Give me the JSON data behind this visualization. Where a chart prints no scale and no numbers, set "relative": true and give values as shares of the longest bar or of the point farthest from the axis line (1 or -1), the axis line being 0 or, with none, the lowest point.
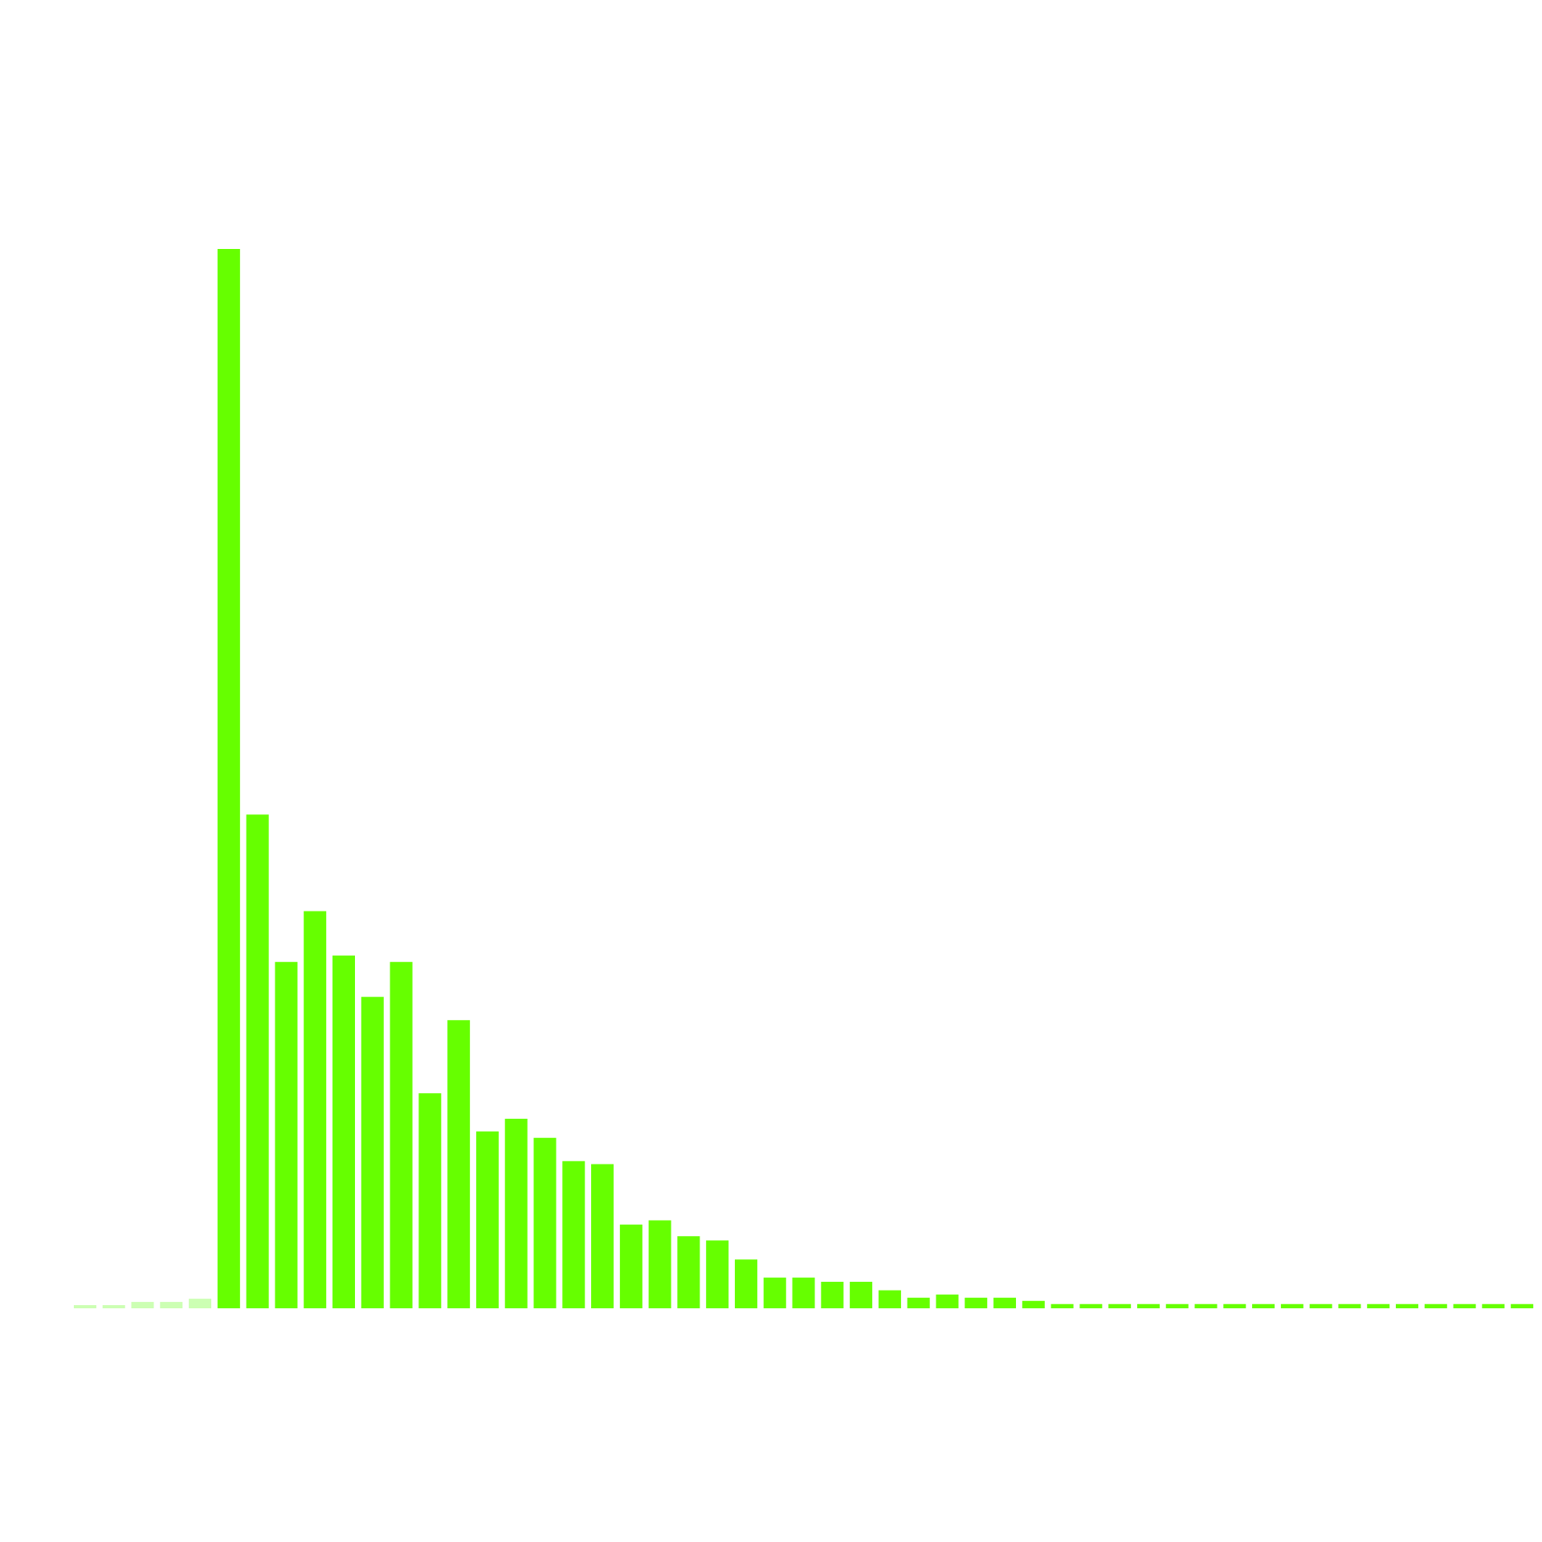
{
  "chart_data": {
    "type": "bar",
    "relative": true,
    "categories": [
      null,
      null,
      null,
      null,
      null,
      null,
      null,
      null,
      null,
      null,
      null,
      null,
      null,
      null,
      null,
      null,
      null,
      null,
      null,
      null,
      null,
      null,
      null,
      null,
      null,
      null,
      null,
      null,
      null,
      null,
      null,
      null,
      null,
      null,
      null,
      null,
      null,
      null,
      null,
      null,
      null,
      null,
      null,
      null,
      null,
      null,
      null,
      null,
      null,
      null,
      null
    ],
    "values": [
      0.003,
      0.003,
      0.006,
      0.006,
      0.009,
      1,
      0.466,
      0.327,
      0.375,
      0.333,
      0.294,
      0.327,
      0.203,
      0.272,
      0.167,
      0.179,
      0.161,
      0.139,
      0.136,
      0.079,
      0.083,
      0.068,
      0.064,
      0.046,
      0.029,
      0.029,
      0.025,
      0.025,
      0.017,
      0.01,
      0.013,
      0.01,
      0.01,
      0.007,
      0.004,
      0.004,
      0.004,
      0.004,
      0.004,
      0.004,
      0.004,
      0.004,
      0.004,
      0.004,
      0.004,
      0.004,
      0.004,
      0.004,
      0.004,
      0.004,
      0.004
    ],
    "colors": [
      "#ccffb3",
      "#ccffb3",
      "#ccffb3",
      "#ccffb3",
      "#ccffb3",
      "#66ff00",
      "#66ff00",
      "#66ff00",
      "#66ff00",
      "#66ff00",
      "#66ff00",
      "#66ff00",
      "#66ff00",
      "#66ff00",
      "#66ff00",
      "#66ff00",
      "#66ff00",
      "#66ff00",
      "#66ff00",
      "#66ff00",
      "#66ff00",
      "#66ff00",
      "#66ff00",
      "#66ff00",
      "#66ff00",
      "#66ff00",
      "#66ff00",
      "#66ff00",
      "#66ff00",
      "#66ff00",
      "#66ff00",
      "#66ff00",
      "#66ff00",
      "#66ff00",
      "#66ff00",
      "#66ff00",
      "#66ff00",
      "#66ff00",
      "#66ff00",
      "#66ff00",
      "#66ff00",
      "#66ff00",
      "#66ff00",
      "#66ff00",
      "#66ff00",
      "#66ff00",
      "#66ff00",
      "#66ff00",
      "#66ff00",
      "#66ff00",
      "#66ff00"
    ]
  }
}
